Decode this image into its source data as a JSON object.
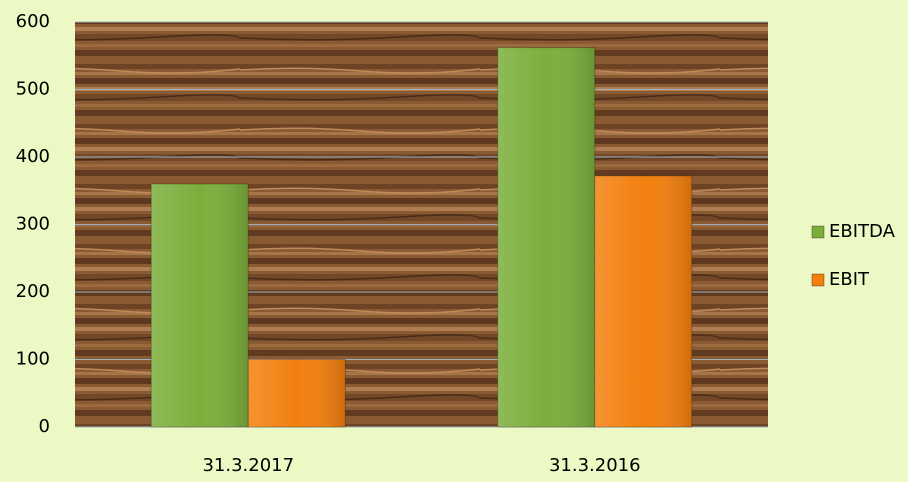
{
  "chart_data": {
    "type": "bar",
    "categories": [
      "31.3.2017",
      "31.3.2016"
    ],
    "series": [
      {
        "name": "EBITDA",
        "color": "#7cae3c",
        "values": [
          360,
          562
        ]
      },
      {
        "name": "EBIT",
        "color": "#f2800f",
        "values": [
          100,
          372
        ]
      }
    ],
    "ylim": [
      0,
      600
    ],
    "yticks": [
      0,
      100,
      200,
      300,
      400,
      500,
      600
    ],
    "grid": true,
    "legend": "right"
  }
}
